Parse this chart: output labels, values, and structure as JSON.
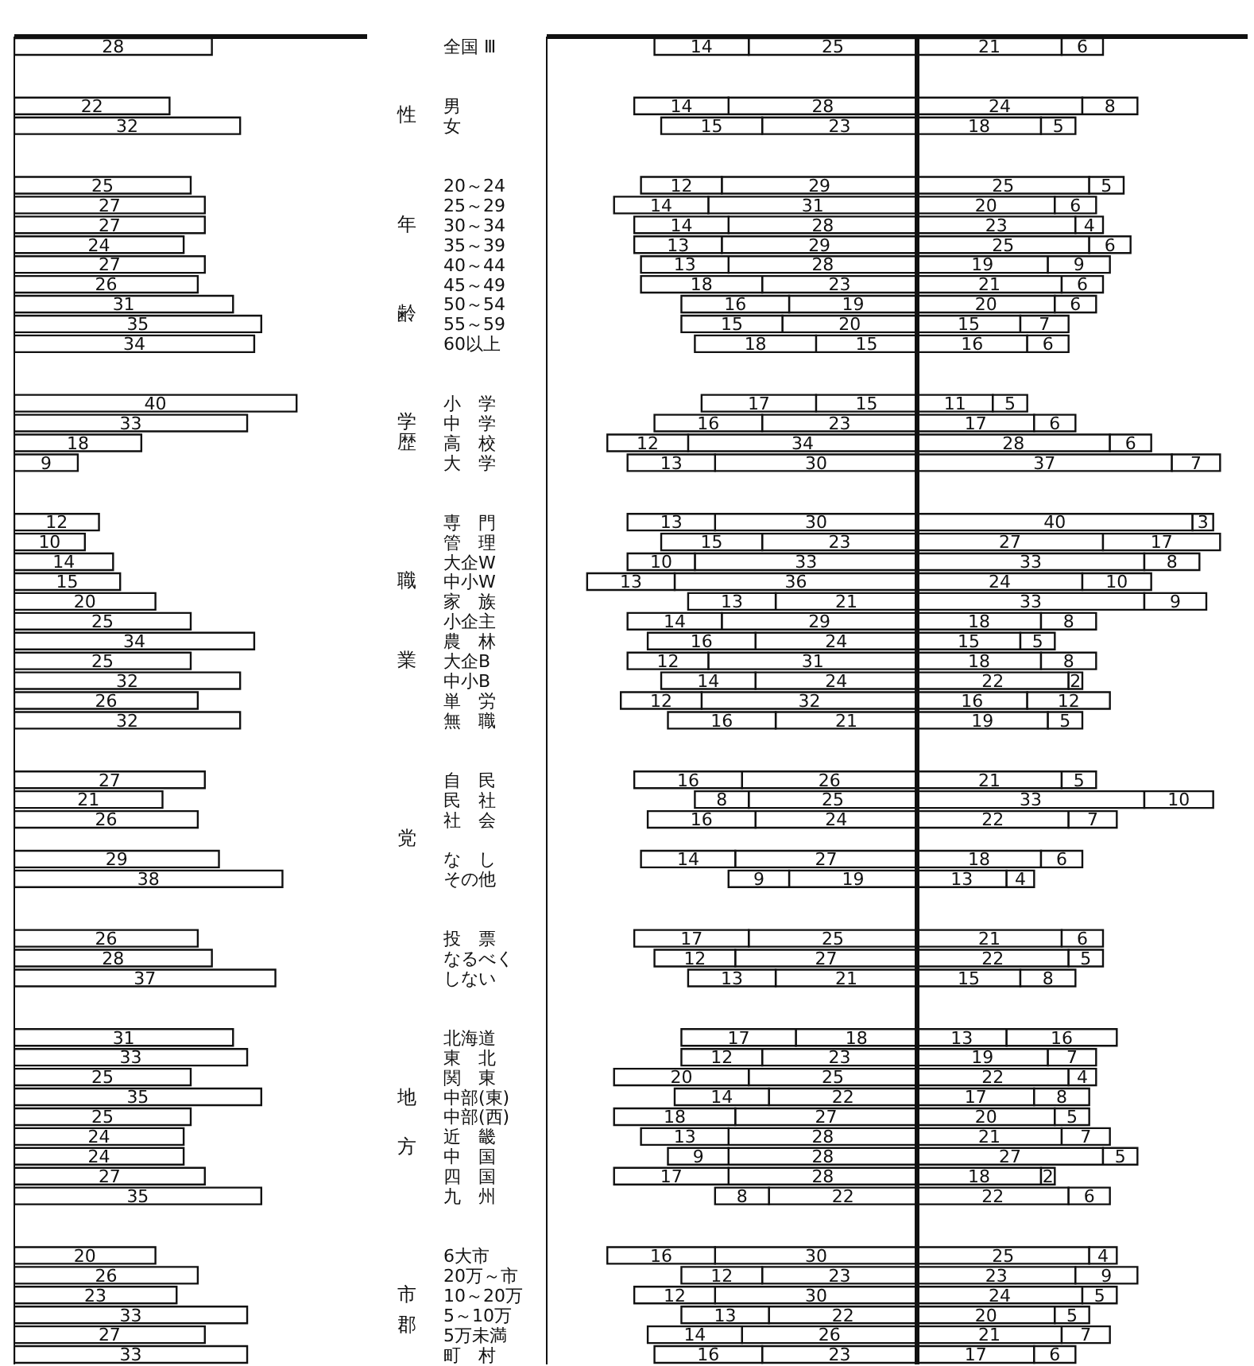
{
  "chart_data": [
    {
      "type": "bar",
      "orientation": "horizontal",
      "data_labels": true,
      "tick_labels": "y",
      "xlim": [
        0,
        50
      ],
      "annotations": [
        "性",
        "年",
        "齢",
        "学",
        "歴",
        "職",
        "業",
        "党",
        "地",
        "方",
        "市",
        "郡"
      ],
      "categories": [
        "全国 Ⅲ",
        null,
        null,
        "男",
        "女",
        null,
        null,
        "20～24",
        "25～29",
        "30～34",
        "35～39",
        "40～44",
        "45～49",
        "50～54",
        "55～59",
        "60以上",
        null,
        null,
        "小　学",
        "中　学",
        "高　校",
        "大　学",
        null,
        null,
        "専　門",
        "管　理",
        "大企W",
        "中小W",
        "家　族",
        "小企主",
        "農　林",
        "大企B",
        "中小B",
        "単　労",
        "無　職",
        null,
        null,
        "自　民",
        "民　社",
        "社　会",
        null,
        "な　し",
        "その他",
        null,
        null,
        "投　票",
        "なるべく",
        "しない",
        null,
        null,
        "北海道",
        "東　北",
        "関　東",
        "中部(東)",
        "中部(西)",
        "近　畿",
        "中　国",
        "四　国",
        "九　州",
        null,
        null,
        "6大市",
        "20万～市",
        "10～20万",
        "5～10万",
        "5万未満",
        "町　村"
      ],
      "series": [
        {
          "color": "#ffffff",
          "values": [
            28,
            null,
            null,
            22,
            32,
            null,
            null,
            25,
            27,
            27,
            24,
            27,
            26,
            31,
            35,
            34,
            null,
            null,
            40,
            33,
            18,
            9,
            null,
            null,
            12,
            10,
            14,
            15,
            20,
            25,
            34,
            25,
            32,
            26,
            32,
            null,
            null,
            27,
            21,
            26,
            null,
            29,
            38,
            null,
            null,
            26,
            28,
            37,
            null,
            null,
            31,
            33,
            25,
            35,
            25,
            24,
            24,
            27,
            35,
            null,
            null,
            20,
            26,
            23,
            33,
            27,
            33
          ]
        }
      ]
    },
    {
      "type": "bar",
      "orientation": "horizontal",
      "stacked": true,
      "data_labels": true,
      "tick_labels": false,
      "xlim": [
        55,
        0
      ],
      "series": [
        {
          "color": "#ffffff",
          "values": [
            25,
            null,
            null,
            28,
            23,
            null,
            null,
            29,
            31,
            28,
            29,
            28,
            23,
            19,
            20,
            15,
            null,
            null,
            15,
            23,
            34,
            30,
            null,
            null,
            30,
            23,
            33,
            36,
            21,
            29,
            24,
            31,
            24,
            32,
            21,
            null,
            null,
            26,
            25,
            24,
            null,
            27,
            19,
            null,
            null,
            25,
            27,
            21,
            null,
            null,
            18,
            23,
            25,
            22,
            27,
            28,
            28,
            28,
            22,
            null,
            null,
            30,
            23,
            30,
            22,
            26,
            23
          ]
        },
        {
          "color": "#ffffff",
          "values": [
            14,
            null,
            null,
            14,
            15,
            null,
            null,
            12,
            14,
            14,
            13,
            13,
            18,
            16,
            15,
            18,
            null,
            null,
            17,
            16,
            12,
            13,
            null,
            null,
            13,
            15,
            10,
            13,
            13,
            14,
            16,
            12,
            14,
            12,
            16,
            null,
            null,
            16,
            8,
            16,
            null,
            14,
            9,
            null,
            null,
            17,
            12,
            13,
            null,
            null,
            17,
            12,
            20,
            14,
            18,
            13,
            9,
            17,
            8,
            null,
            null,
            16,
            12,
            12,
            13,
            14,
            16
          ]
        }
      ]
    },
    {
      "type": "bar",
      "orientation": "horizontal",
      "stacked": true,
      "data_labels": true,
      "tick_labels": false,
      "xlim": [
        0,
        48
      ],
      "series": [
        {
          "color": "#ffffff",
          "values": [
            21,
            null,
            null,
            24,
            18,
            null,
            null,
            25,
            20,
            23,
            25,
            19,
            21,
            20,
            15,
            16,
            null,
            null,
            11,
            17,
            28,
            37,
            null,
            null,
            40,
            27,
            33,
            24,
            33,
            18,
            15,
            18,
            22,
            16,
            19,
            null,
            null,
            21,
            33,
            22,
            null,
            18,
            13,
            null,
            null,
            21,
            22,
            15,
            null,
            null,
            13,
            19,
            22,
            17,
            20,
            21,
            27,
            18,
            22,
            null,
            null,
            25,
            23,
            24,
            20,
            21,
            17
          ]
        },
        {
          "color": "#ffffff",
          "values": [
            6,
            null,
            null,
            8,
            5,
            null,
            null,
            5,
            6,
            4,
            6,
            9,
            6,
            6,
            7,
            6,
            null,
            null,
            5,
            6,
            6,
            7,
            null,
            null,
            3,
            17,
            8,
            10,
            9,
            8,
            5,
            8,
            2,
            12,
            5,
            null,
            null,
            5,
            10,
            7,
            null,
            6,
            4,
            null,
            null,
            6,
            5,
            8,
            null,
            null,
            16,
            7,
            4,
            8,
            5,
            7,
            5,
            2,
            6,
            null,
            null,
            4,
            9,
            5,
            5,
            7,
            6
          ]
        }
      ]
    }
  ]
}
